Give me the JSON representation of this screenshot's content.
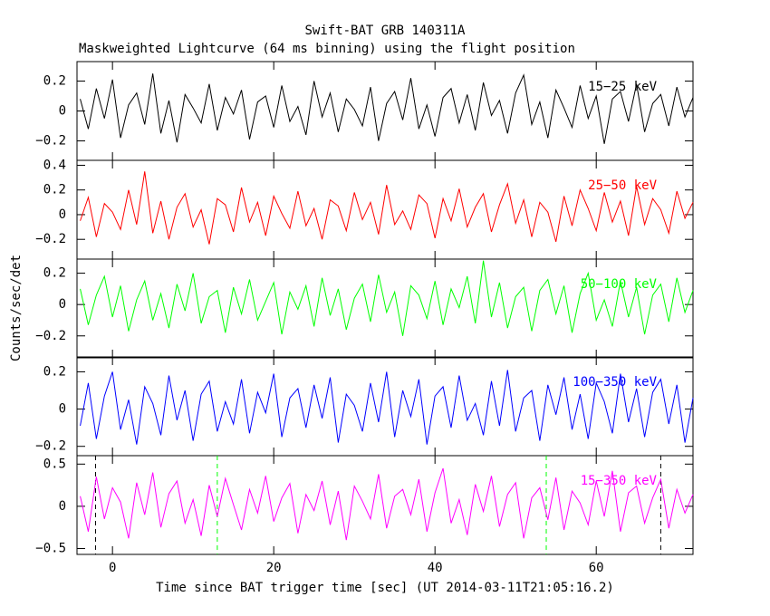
{
  "chart_data": [
    {
      "type": "line",
      "title": "Swift-BAT GRB 140311A",
      "subtitle": "Maskweighted Lightcurve (64 ms binning) using the flight position",
      "xlim": [
        -4.4,
        72.0
      ],
      "xticks": [
        0,
        20,
        40,
        60
      ],
      "ylim": [
        -0.33,
        0.33
      ],
      "yticks": [
        {
          "value": -0.2,
          "label": "−0.2"
        },
        0,
        0.2
      ],
      "x": [
        -4,
        -3,
        -2,
        -1,
        0,
        1,
        2,
        3,
        4,
        5,
        6,
        7,
        8,
        9,
        10,
        11,
        12,
        13,
        14,
        15,
        16,
        17,
        18,
        19,
        20,
        21,
        22,
        23,
        24,
        25,
        26,
        27,
        28,
        29,
        30,
        31,
        32,
        33,
        34,
        35,
        36,
        37,
        38,
        39,
        40,
        41,
        42,
        43,
        44,
        45,
        46,
        47,
        48,
        49,
        50,
        51,
        52,
        53,
        54,
        55,
        56,
        57,
        58,
        59,
        60,
        61,
        62,
        63,
        64,
        65,
        66,
        67,
        68,
        69,
        70,
        71,
        72
      ],
      "series": [
        {
          "name": "15−25 keV",
          "color": "#000000",
          "values": [
            0.08,
            -0.12,
            0.15,
            -0.05,
            0.21,
            -0.18,
            0.04,
            0.12,
            -0.09,
            0.25,
            -0.15,
            0.07,
            -0.21,
            0.11,
            0.02,
            -0.08,
            0.18,
            -0.13,
            0.09,
            -0.02,
            0.14,
            -0.19,
            0.06,
            0.1,
            -0.11,
            0.17,
            -0.07,
            0.03,
            -0.16,
            0.2,
            -0.04,
            0.12,
            -0.14,
            0.08,
            0.01,
            -0.1,
            0.16,
            -0.2,
            0.05,
            0.13,
            -0.06,
            0.22,
            -0.12,
            0.04,
            -0.17,
            0.09,
            0.15,
            -0.08,
            0.11,
            -0.13,
            0.19,
            -0.03,
            0.07,
            -0.15,
            0.12,
            0.24,
            -0.09,
            0.06,
            -0.18,
            0.14,
            0.02,
            -0.11,
            0.17,
            -0.05,
            0.1,
            -0.22,
            0.08,
            0.13,
            -0.07,
            0.18,
            -0.14,
            0.05,
            0.11,
            -0.1,
            0.16,
            -0.04,
            0.09
          ]
        }
      ]
    },
    {
      "type": "line",
      "xlim": [
        -4.4,
        72.0
      ],
      "xticks": [
        0,
        20,
        40,
        60
      ],
      "ylim": [
        -0.36,
        0.44
      ],
      "yticks": [
        {
          "value": -0.2,
          "label": "−0.2"
        },
        0,
        0.2,
        0.4
      ],
      "x": [
        -4,
        -3,
        -2,
        -1,
        0,
        1,
        2,
        3,
        4,
        5,
        6,
        7,
        8,
        9,
        10,
        11,
        12,
        13,
        14,
        15,
        16,
        17,
        18,
        19,
        20,
        21,
        22,
        23,
        24,
        25,
        26,
        27,
        28,
        29,
        30,
        31,
        32,
        33,
        34,
        35,
        36,
        37,
        38,
        39,
        40,
        41,
        42,
        43,
        44,
        45,
        46,
        47,
        48,
        49,
        50,
        51,
        52,
        53,
        54,
        55,
        56,
        57,
        58,
        59,
        60,
        61,
        62,
        63,
        64,
        65,
        66,
        67,
        68,
        69,
        70,
        71,
        72
      ],
      "series": [
        {
          "name": "25−50 keV",
          "color": "#ff0000",
          "values": [
            -0.05,
            0.14,
            -0.18,
            0.09,
            0.02,
            -0.12,
            0.2,
            -0.08,
            0.35,
            -0.15,
            0.11,
            -0.2,
            0.06,
            0.17,
            -0.1,
            0.04,
            -0.24,
            0.13,
            0.08,
            -0.14,
            0.22,
            -0.06,
            0.1,
            -0.17,
            0.15,
            0.01,
            -0.11,
            0.19,
            -0.09,
            0.05,
            -0.2,
            0.12,
            0.07,
            -0.13,
            0.18,
            -0.04,
            0.1,
            -0.16,
            0.24,
            -0.08,
            0.03,
            -0.12,
            0.16,
            0.09,
            -0.19,
            0.13,
            -0.05,
            0.21,
            -0.1,
            0.06,
            0.17,
            -0.14,
            0.08,
            0.25,
            -0.07,
            0.12,
            -0.18,
            0.1,
            0.02,
            -0.22,
            0.15,
            -0.09,
            0.2,
            0.05,
            -0.13,
            0.18,
            -0.06,
            0.11,
            -0.17,
            0.23,
            -0.08,
            0.13,
            0.04,
            -0.15,
            0.19,
            -0.03,
            0.1
          ]
        }
      ]
    },
    {
      "type": "line",
      "ylabel": "Counts/sec/det",
      "xlim": [
        -4.4,
        72.0
      ],
      "xticks": [
        0,
        20,
        40,
        60
      ],
      "ylim": [
        -0.34,
        0.29
      ],
      "yticks": [
        {
          "value": -0.2,
          "label": "−0.2"
        },
        0,
        0.2
      ],
      "x": [
        -4,
        -3,
        -2,
        -1,
        0,
        1,
        2,
        3,
        4,
        5,
        6,
        7,
        8,
        9,
        10,
        11,
        12,
        13,
        14,
        15,
        16,
        17,
        18,
        19,
        20,
        21,
        22,
        23,
        24,
        25,
        26,
        27,
        28,
        29,
        30,
        31,
        32,
        33,
        34,
        35,
        36,
        37,
        38,
        39,
        40,
        41,
        42,
        43,
        44,
        45,
        46,
        47,
        48,
        49,
        50,
        51,
        52,
        53,
        54,
        55,
        56,
        57,
        58,
        59,
        60,
        61,
        62,
        63,
        64,
        65,
        66,
        67,
        68,
        69,
        70,
        71,
        72
      ],
      "series": [
        {
          "name": "50−100 keV",
          "color": "#00ff00",
          "values": [
            0.1,
            -0.13,
            0.06,
            0.18,
            -0.08,
            0.12,
            -0.17,
            0.03,
            0.15,
            -0.1,
            0.07,
            -0.15,
            0.13,
            -0.04,
            0.2,
            -0.12,
            0.05,
            0.09,
            -0.18,
            0.11,
            -0.06,
            0.16,
            -0.1,
            0.02,
            0.14,
            -0.19,
            0.08,
            -0.03,
            0.12,
            -0.14,
            0.17,
            -0.07,
            0.1,
            -0.16,
            0.04,
            0.13,
            -0.11,
            0.19,
            -0.05,
            0.08,
            -0.2,
            0.12,
            0.06,
            -0.09,
            0.15,
            -0.13,
            0.1,
            -0.02,
            0.18,
            -0.12,
            0.28,
            -0.08,
            0.14,
            -0.15,
            0.05,
            0.11,
            -0.17,
            0.09,
            0.16,
            -0.06,
            0.12,
            -0.18,
            0.07,
            0.2,
            -0.1,
            0.03,
            -0.14,
            0.15,
            -0.08,
            0.11,
            -0.19,
            0.06,
            0.13,
            -0.11,
            0.17,
            -0.05,
            0.09
          ]
        }
      ]
    },
    {
      "type": "line",
      "xlim": [
        -4.4,
        72.0
      ],
      "xticks": [
        0,
        20,
        40,
        60
      ],
      "ylim": [
        -0.25,
        0.28
      ],
      "yticks": [
        {
          "value": -0.2,
          "label": "−0.2"
        },
        0,
        0.2
      ],
      "x": [
        -4,
        -3,
        -2,
        -1,
        0,
        1,
        2,
        3,
        4,
        5,
        6,
        7,
        8,
        9,
        10,
        11,
        12,
        13,
        14,
        15,
        16,
        17,
        18,
        19,
        20,
        21,
        22,
        23,
        24,
        25,
        26,
        27,
        28,
        29,
        30,
        31,
        32,
        33,
        34,
        35,
        36,
        37,
        38,
        39,
        40,
        41,
        42,
        43,
        44,
        45,
        46,
        47,
        48,
        49,
        50,
        51,
        52,
        53,
        54,
        55,
        56,
        57,
        58,
        59,
        60,
        61,
        62,
        63,
        64,
        65,
        66,
        67,
        68,
        69,
        70,
        71,
        72
      ],
      "series": [
        {
          "name": "100−350 keV",
          "color": "#0000ff",
          "values": [
            -0.09,
            0.14,
            -0.16,
            0.07,
            0.2,
            -0.11,
            0.05,
            -0.19,
            0.12,
            0.03,
            -0.14,
            0.18,
            -0.06,
            0.1,
            -0.17,
            0.08,
            0.15,
            -0.12,
            0.04,
            -0.08,
            0.16,
            -0.13,
            0.09,
            -0.02,
            0.19,
            -0.15,
            0.06,
            0.11,
            -0.1,
            0.13,
            -0.05,
            0.17,
            -0.18,
            0.08,
            0.02,
            -0.12,
            0.14,
            -0.07,
            0.2,
            -0.15,
            0.1,
            -0.04,
            0.16,
            -0.19,
            0.07,
            0.12,
            -0.1,
            0.18,
            -0.06,
            0.03,
            -0.14,
            0.15,
            -0.09,
            0.21,
            -0.12,
            0.06,
            0.1,
            -0.17,
            0.13,
            -0.03,
            0.17,
            -0.11,
            0.08,
            -0.16,
            0.14,
            0.04,
            -0.13,
            0.19,
            -0.07,
            0.11,
            -0.15,
            0.09,
            0.16,
            -0.08,
            0.13,
            -0.18,
            0.06
          ]
        }
      ]
    },
    {
      "type": "line",
      "xlabel": "Time since BAT trigger time [sec] (UT 2014-03-11T21:05:16.2)",
      "xlim": [
        -4.4,
        72.0
      ],
      "xticks": [
        0,
        20,
        40,
        60
      ],
      "ylim": [
        -0.57,
        0.6
      ],
      "yticks": [
        {
          "value": -0.5,
          "label": "−0.5"
        },
        0,
        0.5
      ],
      "vlines": [
        {
          "x": -2.1,
          "color": "#000000"
        },
        {
          "x": 13.0,
          "color": "#00ff00"
        },
        {
          "x": 53.8,
          "color": "#00ff00"
        },
        {
          "x": 68.0,
          "color": "#000000"
        }
      ],
      "x": [
        -4,
        -3,
        -2,
        -1,
        0,
        1,
        2,
        3,
        4,
        5,
        6,
        7,
        8,
        9,
        10,
        11,
        12,
        13,
        14,
        15,
        16,
        17,
        18,
        19,
        20,
        21,
        22,
        23,
        24,
        25,
        26,
        27,
        28,
        29,
        30,
        31,
        32,
        33,
        34,
        35,
        36,
        37,
        38,
        39,
        40,
        41,
        42,
        43,
        44,
        45,
        46,
        47,
        48,
        49,
        50,
        51,
        52,
        53,
        54,
        55,
        56,
        57,
        58,
        59,
        60,
        61,
        62,
        63,
        64,
        65,
        66,
        67,
        68,
        69,
        70,
        71,
        72
      ],
      "series": [
        {
          "name": "15−350 keV",
          "color": "#ff00ff",
          "values": [
            0.12,
            -0.3,
            0.35,
            -0.15,
            0.22,
            0.05,
            -0.38,
            0.28,
            -0.1,
            0.4,
            -0.25,
            0.15,
            0.3,
            -0.2,
            0.08,
            -0.35,
            0.25,
            -0.12,
            0.33,
            0.02,
            -0.28,
            0.2,
            -0.08,
            0.36,
            -0.18,
            0.1,
            0.27,
            -0.32,
            0.14,
            -0.05,
            0.3,
            -0.22,
            0.18,
            -0.4,
            0.24,
            0.06,
            -0.15,
            0.38,
            -0.26,
            0.12,
            0.2,
            -0.1,
            0.32,
            -0.3,
            0.16,
            0.45,
            -0.2,
            0.08,
            -0.34,
            0.26,
            -0.06,
            0.36,
            -0.24,
            0.14,
            0.28,
            -0.38,
            0.1,
            0.22,
            -0.16,
            0.34,
            -0.28,
            0.18,
            0.04,
            -0.22,
            0.3,
            -0.12,
            0.42,
            -0.3,
            0.16,
            0.24,
            -0.2,
            0.1,
            0.32,
            -0.26,
            0.2,
            -0.08,
            0.14
          ]
        }
      ]
    }
  ]
}
